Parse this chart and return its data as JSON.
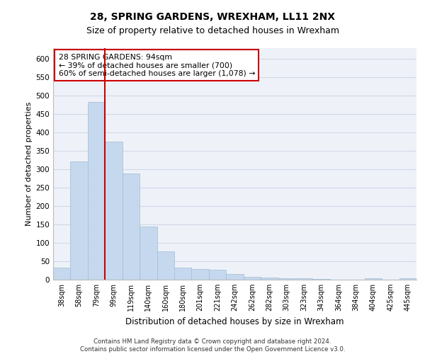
{
  "title1": "28, SPRING GARDENS, WREXHAM, LL11 2NX",
  "title2": "Size of property relative to detached houses in Wrexham",
  "xlabel": "Distribution of detached houses by size in Wrexham",
  "ylabel": "Number of detached properties",
  "categories": [
    "38sqm",
    "58sqm",
    "79sqm",
    "99sqm",
    "119sqm",
    "140sqm",
    "160sqm",
    "180sqm",
    "201sqm",
    "221sqm",
    "242sqm",
    "262sqm",
    "282sqm",
    "303sqm",
    "323sqm",
    "343sqm",
    "364sqm",
    "384sqm",
    "404sqm",
    "425sqm",
    "445sqm"
  ],
  "values": [
    32,
    322,
    483,
    375,
    289,
    144,
    76,
    32,
    29,
    27,
    15,
    8,
    5,
    3,
    3,
    1,
    0,
    0,
    4,
    0,
    4
  ],
  "bar_color": "#c5d8ed",
  "bar_edge_color": "#a0bcd8",
  "vline_x": 2.5,
  "vline_color": "#cc0000",
  "annotation_text": "28 SPRING GARDENS: 94sqm\n← 39% of detached houses are smaller (700)\n60% of semi-detached houses are larger (1,078) →",
  "annotation_box_color": "#ffffff",
  "annotation_box_edge": "#cc0000",
  "ylim": [
    0,
    630
  ],
  "yticks": [
    0,
    50,
    100,
    150,
    200,
    250,
    300,
    350,
    400,
    450,
    500,
    550,
    600
  ],
  "footer_text": "Contains HM Land Registry data © Crown copyright and database right 2024.\nContains public sector information licensed under the Open Government Licence v3.0.",
  "grid_color": "#d0d8e8",
  "bg_color": "#eef2f8",
  "fig_bg": "#ffffff"
}
